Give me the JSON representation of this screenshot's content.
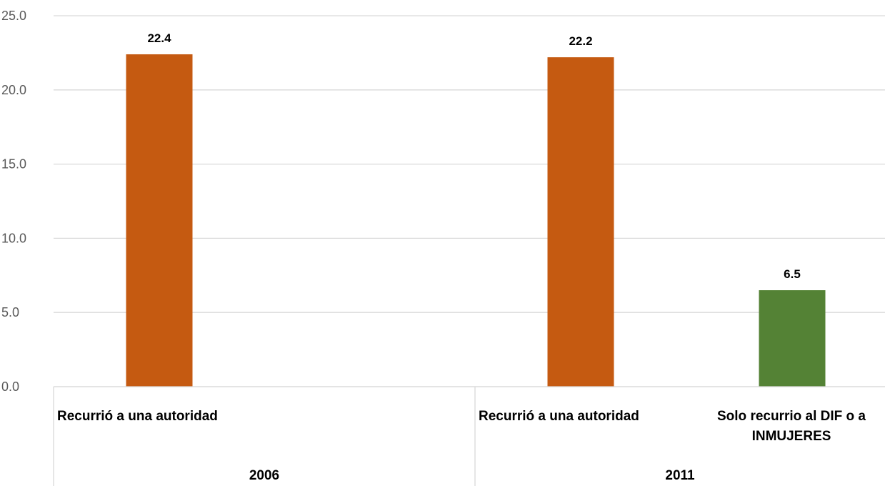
{
  "chart_data": {
    "type": "bar",
    "title": "",
    "xlabel": "",
    "ylabel": "",
    "ylim": [
      0,
      25
    ],
    "yticks": [
      "0.0",
      "5.0",
      "10.0",
      "15.0",
      "20.0",
      "25.0"
    ],
    "grid": true,
    "groups": [
      {
        "label": "2006",
        "bars": [
          {
            "label": "Recurrió a una autoridad",
            "value": 22.4,
            "value_label": "22.4",
            "color": "#C55A11"
          }
        ]
      },
      {
        "label": "2011",
        "bars": [
          {
            "label": "Recurrió a una autoridad",
            "value": 22.2,
            "value_label": "22.2",
            "color": "#C55A11"
          },
          {
            "label": "Solo recurrio al DIF o a INMUJERES",
            "label_lines": [
              "Solo recurrio al DIF o a",
              "INMUJERES"
            ],
            "value": 6.5,
            "value_label": "6.5",
            "color": "#548235"
          }
        ]
      }
    ]
  }
}
